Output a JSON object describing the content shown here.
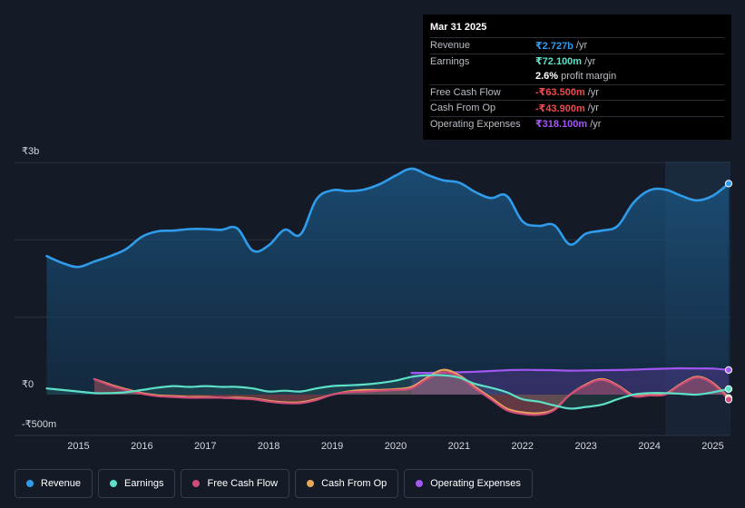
{
  "tooltip": {
    "date": "Mar 31 2025",
    "rows": [
      {
        "label": "Revenue",
        "value": "₹2.727b",
        "unit": "/yr",
        "color": "#2f9bea"
      },
      {
        "label": "Earnings",
        "value": "₹72.100m",
        "unit": "/yr",
        "color": "#5de0c8"
      },
      {
        "label": "",
        "value": "2.6%",
        "unit": "profit margin",
        "color": "#ffffff"
      },
      {
        "label": "Free Cash Flow",
        "value": "-₹63.500m",
        "unit": "/yr",
        "color": "#ef4b4f"
      },
      {
        "label": "Cash From Op",
        "value": "-₹43.900m",
        "unit": "/yr",
        "color": "#ef4b4f"
      },
      {
        "label": "Operating Expenses",
        "value": "₹318.100m",
        "unit": "/yr",
        "color": "#a257f3"
      }
    ]
  },
  "legend": [
    {
      "label": "Revenue",
      "color": "#2f9bea"
    },
    {
      "label": "Earnings",
      "color": "#5de0c8"
    },
    {
      "label": "Free Cash Flow",
      "color": "#cf4b79"
    },
    {
      "label": "Cash From Op",
      "color": "#e9a75a"
    },
    {
      "label": "Operating Expenses",
      "color": "#a257f3"
    }
  ],
  "chart_data": {
    "type": "area",
    "title": "",
    "currency_unit": "₹ millions",
    "y_tick_labels": [
      "₹3b",
      "₹0",
      "-₹500m"
    ],
    "x_tick_labels": [
      "2015",
      "2016",
      "2017",
      "2018",
      "2019",
      "2020",
      "2021",
      "2022",
      "2023",
      "2024",
      "2025"
    ],
    "ylim": [
      -500,
      3000
    ],
    "xlim": [
      2014.45,
      2025.25
    ],
    "forecast_start": 2024.25,
    "series": [
      {
        "name": "Revenue",
        "color": "#2f9bea",
        "points": [
          [
            2014.5,
            1790
          ],
          [
            2014.75,
            1700
          ],
          [
            2015.0,
            1650
          ],
          [
            2015.25,
            1720
          ],
          [
            2015.5,
            1790
          ],
          [
            2015.75,
            1880
          ],
          [
            2016.0,
            2040
          ],
          [
            2016.25,
            2110
          ],
          [
            2016.5,
            2120
          ],
          [
            2016.75,
            2140
          ],
          [
            2017.0,
            2140
          ],
          [
            2017.25,
            2130
          ],
          [
            2017.5,
            2150
          ],
          [
            2017.75,
            1860
          ],
          [
            2018.0,
            1930
          ],
          [
            2018.25,
            2130
          ],
          [
            2018.5,
            2070
          ],
          [
            2018.75,
            2520
          ],
          [
            2019.0,
            2640
          ],
          [
            2019.25,
            2630
          ],
          [
            2019.5,
            2650
          ],
          [
            2019.75,
            2720
          ],
          [
            2020.0,
            2830
          ],
          [
            2020.25,
            2920
          ],
          [
            2020.5,
            2840
          ],
          [
            2020.75,
            2770
          ],
          [
            2021.0,
            2740
          ],
          [
            2021.25,
            2620
          ],
          [
            2021.5,
            2540
          ],
          [
            2021.75,
            2570
          ],
          [
            2022.0,
            2240
          ],
          [
            2022.25,
            2180
          ],
          [
            2022.5,
            2190
          ],
          [
            2022.75,
            1940
          ],
          [
            2023.0,
            2080
          ],
          [
            2023.25,
            2120
          ],
          [
            2023.5,
            2180
          ],
          [
            2023.75,
            2480
          ],
          [
            2024.0,
            2640
          ],
          [
            2024.25,
            2650
          ],
          [
            2024.5,
            2570
          ],
          [
            2024.75,
            2510
          ],
          [
            2025.0,
            2570
          ],
          [
            2025.25,
            2727
          ]
        ]
      },
      {
        "name": "Earnings",
        "color": "#5de0c8",
        "points": [
          [
            2014.5,
            80
          ],
          [
            2014.75,
            60
          ],
          [
            2015.0,
            40
          ],
          [
            2015.25,
            20
          ],
          [
            2015.5,
            20
          ],
          [
            2015.75,
            30
          ],
          [
            2016.0,
            60
          ],
          [
            2016.25,
            90
          ],
          [
            2016.5,
            110
          ],
          [
            2016.75,
            100
          ],
          [
            2017.0,
            110
          ],
          [
            2017.25,
            100
          ],
          [
            2017.5,
            100
          ],
          [
            2017.75,
            80
          ],
          [
            2018.0,
            40
          ],
          [
            2018.25,
            50
          ],
          [
            2018.5,
            40
          ],
          [
            2018.75,
            80
          ],
          [
            2019.0,
            110
          ],
          [
            2019.25,
            120
          ],
          [
            2019.5,
            130
          ],
          [
            2019.75,
            150
          ],
          [
            2020.0,
            180
          ],
          [
            2020.25,
            230
          ],
          [
            2020.5,
            250
          ],
          [
            2020.75,
            250
          ],
          [
            2021.0,
            220
          ],
          [
            2021.25,
            140
          ],
          [
            2021.5,
            90
          ],
          [
            2021.75,
            30
          ],
          [
            2022.0,
            -60
          ],
          [
            2022.25,
            -90
          ],
          [
            2022.5,
            -140
          ],
          [
            2022.75,
            -180
          ],
          [
            2023.0,
            -160
          ],
          [
            2023.25,
            -130
          ],
          [
            2023.5,
            -60
          ],
          [
            2023.75,
            0
          ],
          [
            2024.0,
            20
          ],
          [
            2024.25,
            20
          ],
          [
            2024.5,
            10
          ],
          [
            2024.75,
            0
          ],
          [
            2025.0,
            30
          ],
          [
            2025.25,
            72.1
          ]
        ]
      },
      {
        "name": "Free Cash Flow",
        "color": "#cf4b79",
        "points": [
          [
            2015.25,
            200
          ],
          [
            2015.5,
            120
          ],
          [
            2015.75,
            60
          ],
          [
            2016.0,
            10
          ],
          [
            2016.25,
            -20
          ],
          [
            2016.5,
            -30
          ],
          [
            2016.75,
            -40
          ],
          [
            2017.0,
            -40
          ],
          [
            2017.25,
            -40
          ],
          [
            2017.5,
            -50
          ],
          [
            2017.75,
            -60
          ],
          [
            2018.0,
            -90
          ],
          [
            2018.25,
            -110
          ],
          [
            2018.5,
            -110
          ],
          [
            2018.75,
            -70
          ],
          [
            2019.0,
            0
          ],
          [
            2019.25,
            30
          ],
          [
            2019.5,
            40
          ],
          [
            2019.75,
            50
          ],
          [
            2020.0,
            60
          ],
          [
            2020.25,
            80
          ],
          [
            2020.5,
            200
          ],
          [
            2020.75,
            290
          ],
          [
            2021.0,
            230
          ],
          [
            2021.25,
            80
          ],
          [
            2021.5,
            -60
          ],
          [
            2021.75,
            -200
          ],
          [
            2022.0,
            -250
          ],
          [
            2022.25,
            -260
          ],
          [
            2022.5,
            -200
          ],
          [
            2022.75,
            0
          ],
          [
            2023.0,
            120
          ],
          [
            2023.25,
            190
          ],
          [
            2023.5,
            110
          ],
          [
            2023.75,
            -20
          ],
          [
            2024.0,
            -10
          ],
          [
            2024.25,
            0
          ],
          [
            2024.5,
            130
          ],
          [
            2024.75,
            220
          ],
          [
            2025.0,
            140
          ],
          [
            2025.25,
            -63.5
          ]
        ]
      },
      {
        "name": "Cash From Op",
        "color": "#e9a75a",
        "points": [
          [
            2015.25,
            200
          ],
          [
            2015.5,
            130
          ],
          [
            2015.75,
            70
          ],
          [
            2016.0,
            20
          ],
          [
            2016.25,
            -10
          ],
          [
            2016.5,
            -20
          ],
          [
            2016.75,
            -30
          ],
          [
            2017.0,
            -30
          ],
          [
            2017.25,
            -40
          ],
          [
            2017.5,
            -40
          ],
          [
            2017.75,
            -50
          ],
          [
            2018.0,
            -80
          ],
          [
            2018.25,
            -100
          ],
          [
            2018.5,
            -100
          ],
          [
            2018.75,
            -60
          ],
          [
            2019.0,
            0
          ],
          [
            2019.25,
            40
          ],
          [
            2019.5,
            60
          ],
          [
            2019.75,
            60
          ],
          [
            2020.0,
            70
          ],
          [
            2020.25,
            100
          ],
          [
            2020.5,
            220
          ],
          [
            2020.75,
            320
          ],
          [
            2021.0,
            250
          ],
          [
            2021.25,
            100
          ],
          [
            2021.5,
            -40
          ],
          [
            2021.75,
            -180
          ],
          [
            2022.0,
            -230
          ],
          [
            2022.25,
            -240
          ],
          [
            2022.5,
            -190
          ],
          [
            2022.75,
            0
          ],
          [
            2023.0,
            130
          ],
          [
            2023.25,
            200
          ],
          [
            2023.5,
            120
          ],
          [
            2023.75,
            -10
          ],
          [
            2024.0,
            0
          ],
          [
            2024.25,
            10
          ],
          [
            2024.5,
            140
          ],
          [
            2024.75,
            230
          ],
          [
            2025.0,
            150
          ],
          [
            2025.25,
            -43.9
          ]
        ]
      },
      {
        "name": "Operating Expenses",
        "color": "#a257f3",
        "points": [
          [
            2020.25,
            280
          ],
          [
            2020.5,
            280
          ],
          [
            2020.75,
            285
          ],
          [
            2021.0,
            290
          ],
          [
            2021.25,
            295
          ],
          [
            2021.5,
            305
          ],
          [
            2021.75,
            315
          ],
          [
            2022.0,
            320
          ],
          [
            2022.25,
            318
          ],
          [
            2022.5,
            315
          ],
          [
            2022.75,
            310
          ],
          [
            2023.0,
            312
          ],
          [
            2023.25,
            315
          ],
          [
            2023.5,
            318
          ],
          [
            2023.75,
            322
          ],
          [
            2024.0,
            330
          ],
          [
            2024.25,
            335
          ],
          [
            2024.5,
            340
          ],
          [
            2024.75,
            338
          ],
          [
            2025.0,
            336
          ],
          [
            2025.25,
            318.1
          ]
        ]
      }
    ]
  }
}
